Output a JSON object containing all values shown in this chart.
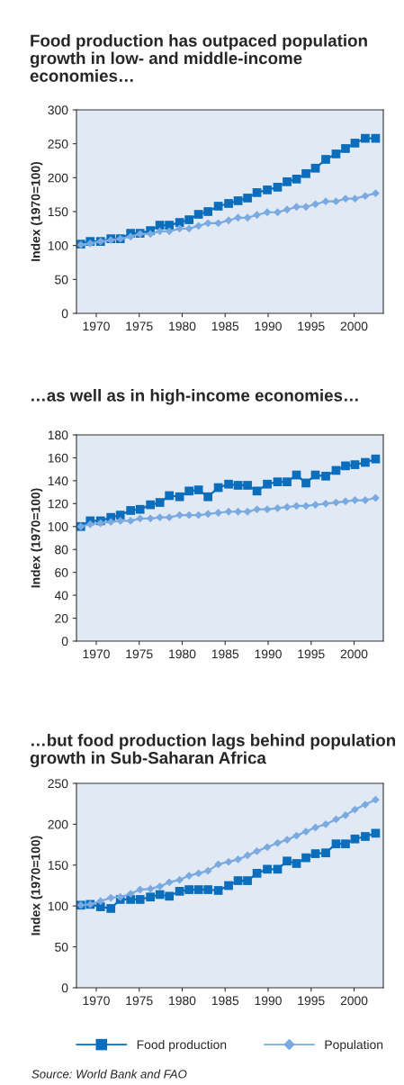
{
  "chart_data": [
    {
      "type": "line",
      "title": "Food production has outpaced population growth in low- and middle-income economies…",
      "ylabel": "Index (1970=100)",
      "x": [
        1968.2,
        1969.3,
        1970.5,
        1971.7,
        1972.8,
        1974.0,
        1975.1,
        1976.3,
        1977.4,
        1978.5,
        1979.7,
        1980.8,
        1981.9,
        1983.0,
        1984.2,
        1985.4,
        1986.5,
        1987.6,
        1988.7,
        1989.9,
        1991.1,
        1992.2,
        1993.3,
        1994.4,
        1995.5,
        1996.7,
        1997.9,
        1999.0,
        2000.1,
        2001.3,
        2002.5
      ],
      "series": [
        {
          "color": "#0a6ebd",
          "marker": "square",
          "values": [
            102,
            106,
            106,
            110,
            110,
            118,
            118,
            122,
            130,
            130,
            134,
            138,
            146,
            150,
            158,
            162,
            166,
            170,
            178,
            182,
            186,
            194,
            198,
            206,
            214,
            227,
            235,
            243,
            251,
            258,
            258
          ]
        },
        {
          "color": "#7aaae0",
          "marker": "diamond",
          "values": [
            101,
            103,
            106,
            108,
            110,
            113,
            117,
            117,
            121,
            121,
            125,
            125,
            129,
            133,
            133,
            137,
            141,
            141,
            145,
            149,
            149,
            153,
            157,
            157,
            161,
            165,
            165,
            169,
            169,
            173,
            177
          ]
        }
      ],
      "xlim": [
        1967.7,
        2003.4
      ],
      "xticks": [
        1970,
        1975,
        1980,
        1985,
        1990,
        1995,
        2000
      ],
      "ylim": [
        0,
        300
      ],
      "yticks": [
        0,
        50,
        100,
        150,
        200,
        250,
        300
      ]
    },
    {
      "type": "line",
      "title": "…as well as in high-income economies…",
      "ylabel": "Index (1970=100)",
      "x": [
        1968.2,
        1969.3,
        1970.5,
        1971.7,
        1972.8,
        1974.0,
        1975.1,
        1976.3,
        1977.4,
        1978.5,
        1979.7,
        1980.8,
        1981.9,
        1983.0,
        1984.2,
        1985.4,
        1986.5,
        1987.6,
        1988.7,
        1989.9,
        1991.1,
        1992.2,
        1993.3,
        1994.4,
        1995.5,
        1996.7,
        1997.9,
        1999.0,
        2000.1,
        2001.3,
        2002.5
      ],
      "series": [
        {
          "color": "#0a6ebd",
          "marker": "square",
          "values": [
            100,
            105,
            105,
            108,
            110,
            114,
            115,
            119,
            121,
            127,
            126,
            131,
            132,
            126,
            134,
            137,
            136,
            136,
            131,
            137,
            139,
            139,
            145,
            138,
            145,
            144,
            149,
            153,
            154,
            156,
            159
          ]
        },
        {
          "color": "#7aaae0",
          "marker": "diamond",
          "values": [
            100,
            102,
            103,
            104,
            105,
            105,
            107,
            107,
            108,
            108,
            110,
            110,
            110,
            111,
            112,
            113,
            113,
            113,
            115,
            115,
            116,
            117,
            118,
            118,
            119,
            120,
            121,
            122,
            123,
            123,
            125
          ]
        }
      ],
      "xlim": [
        1967.7,
        2003.4
      ],
      "xticks": [
        1970,
        1975,
        1980,
        1985,
        1990,
        1995,
        2000
      ],
      "ylim": [
        0,
        180
      ],
      "yticks": [
        0,
        20,
        40,
        60,
        80,
        100,
        120,
        140,
        160,
        180
      ]
    },
    {
      "type": "line",
      "title": "…but food production lags behind population growth in Sub-Saharan Africa",
      "ylabel": "Index (1970=100)",
      "x": [
        1968.2,
        1969.3,
        1970.5,
        1971.7,
        1972.8,
        1974.0,
        1975.1,
        1976.3,
        1977.4,
        1978.5,
        1979.7,
        1980.8,
        1981.9,
        1983.0,
        1984.2,
        1985.4,
        1986.5,
        1987.6,
        1988.7,
        1989.9,
        1991.1,
        1992.2,
        1993.3,
        1994.4,
        1995.5,
        1996.7,
        1997.9,
        1999.0,
        2000.1,
        2001.3,
        2002.5
      ],
      "series": [
        {
          "name": "Food production",
          "color": "#0a6ebd",
          "marker": "square",
          "values": [
            101,
            102,
            99,
            97,
            108,
            108,
            108,
            111,
            114,
            112,
            118,
            120,
            120,
            120,
            119,
            125,
            131,
            131,
            140,
            145,
            145,
            155,
            152,
            159,
            164,
            165,
            176,
            176,
            182,
            185,
            189
          ]
        },
        {
          "name": "Population",
          "color": "#7aaae0",
          "marker": "diamond",
          "values": [
            101,
            102,
            106,
            110,
            111,
            115,
            120,
            121,
            124,
            129,
            132,
            137,
            140,
            143,
            151,
            154,
            157,
            162,
            167,
            172,
            177,
            181,
            186,
            191,
            196,
            200,
            206,
            211,
            218,
            224,
            230
          ]
        }
      ],
      "xlim": [
        1967.7,
        2003.4
      ],
      "xticks": [
        1970,
        1975,
        1980,
        1985,
        1990,
        1995,
        2000
      ],
      "ylim": [
        0,
        250
      ],
      "yticks": [
        0,
        50,
        100,
        150,
        200,
        250
      ],
      "legend": "bottom",
      "annotations": [
        "Source: World Bank and FAO"
      ]
    }
  ]
}
